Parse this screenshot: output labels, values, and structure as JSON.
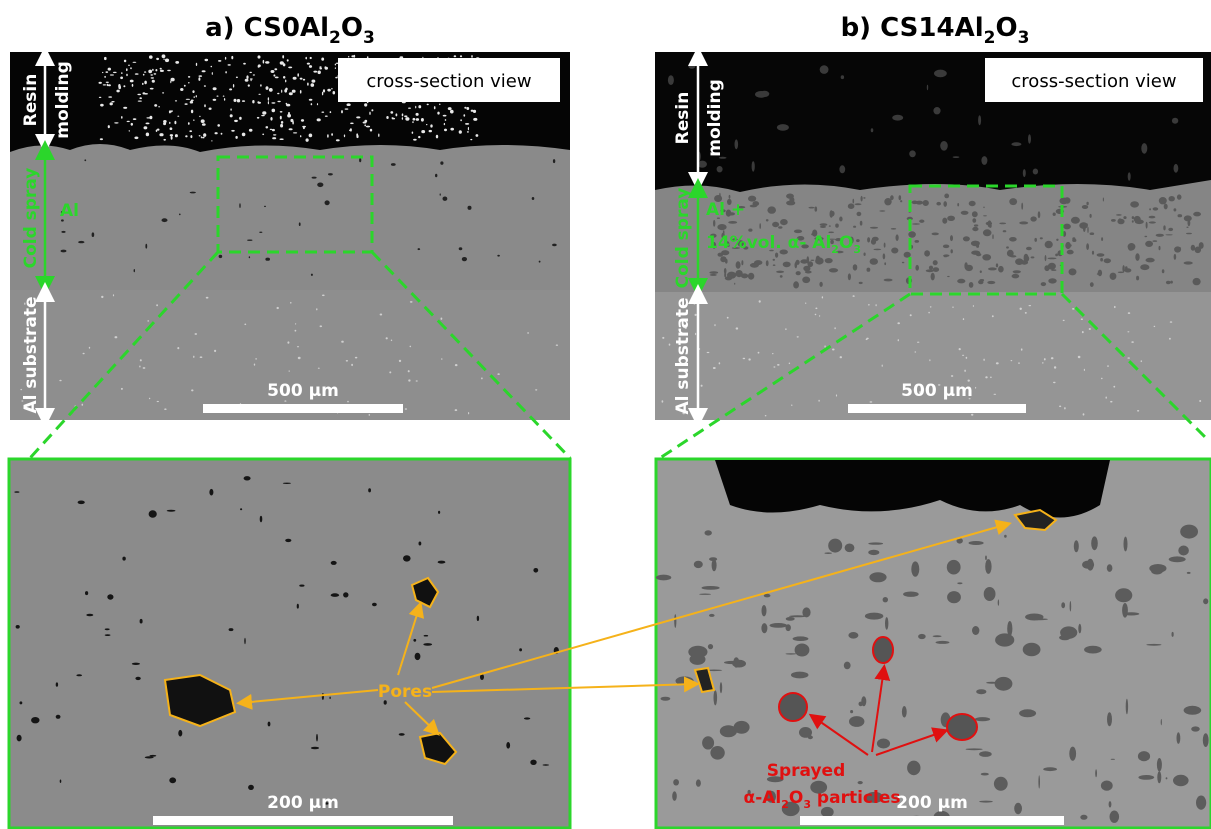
{
  "panels": [
    {
      "title": [
        "a) CS0Al",
        "2",
        "O",
        "3"
      ],
      "view_label": "cross-section view",
      "layers": {
        "resin": [
          "Resin",
          "molding"
        ],
        "coating": "Cold spray",
        "substrate": "Al substrate"
      },
      "coating_material": "Al",
      "scale_top": "500 µm",
      "scale_bottom": "200 µm"
    },
    {
      "title": [
        "b) CS14Al",
        "2",
        "O",
        "3"
      ],
      "view_label": "cross-section view",
      "layers": {
        "resin": [
          "Resin",
          "molding"
        ],
        "coating": "Cold spray",
        "substrate": "Al substrate"
      },
      "coating_material": "Al +",
      "coating_detail": [
        "14%vol. α- Al",
        "2",
        "O",
        "3"
      ],
      "scale_top": "500 µm",
      "scale_bottom": "200 µm"
    }
  ],
  "annotations": {
    "pores": "Pores",
    "particles": [
      "Sprayed",
      [
        "α-Al",
        "2",
        "O",
        "3",
        " particles"
      ]
    ]
  }
}
